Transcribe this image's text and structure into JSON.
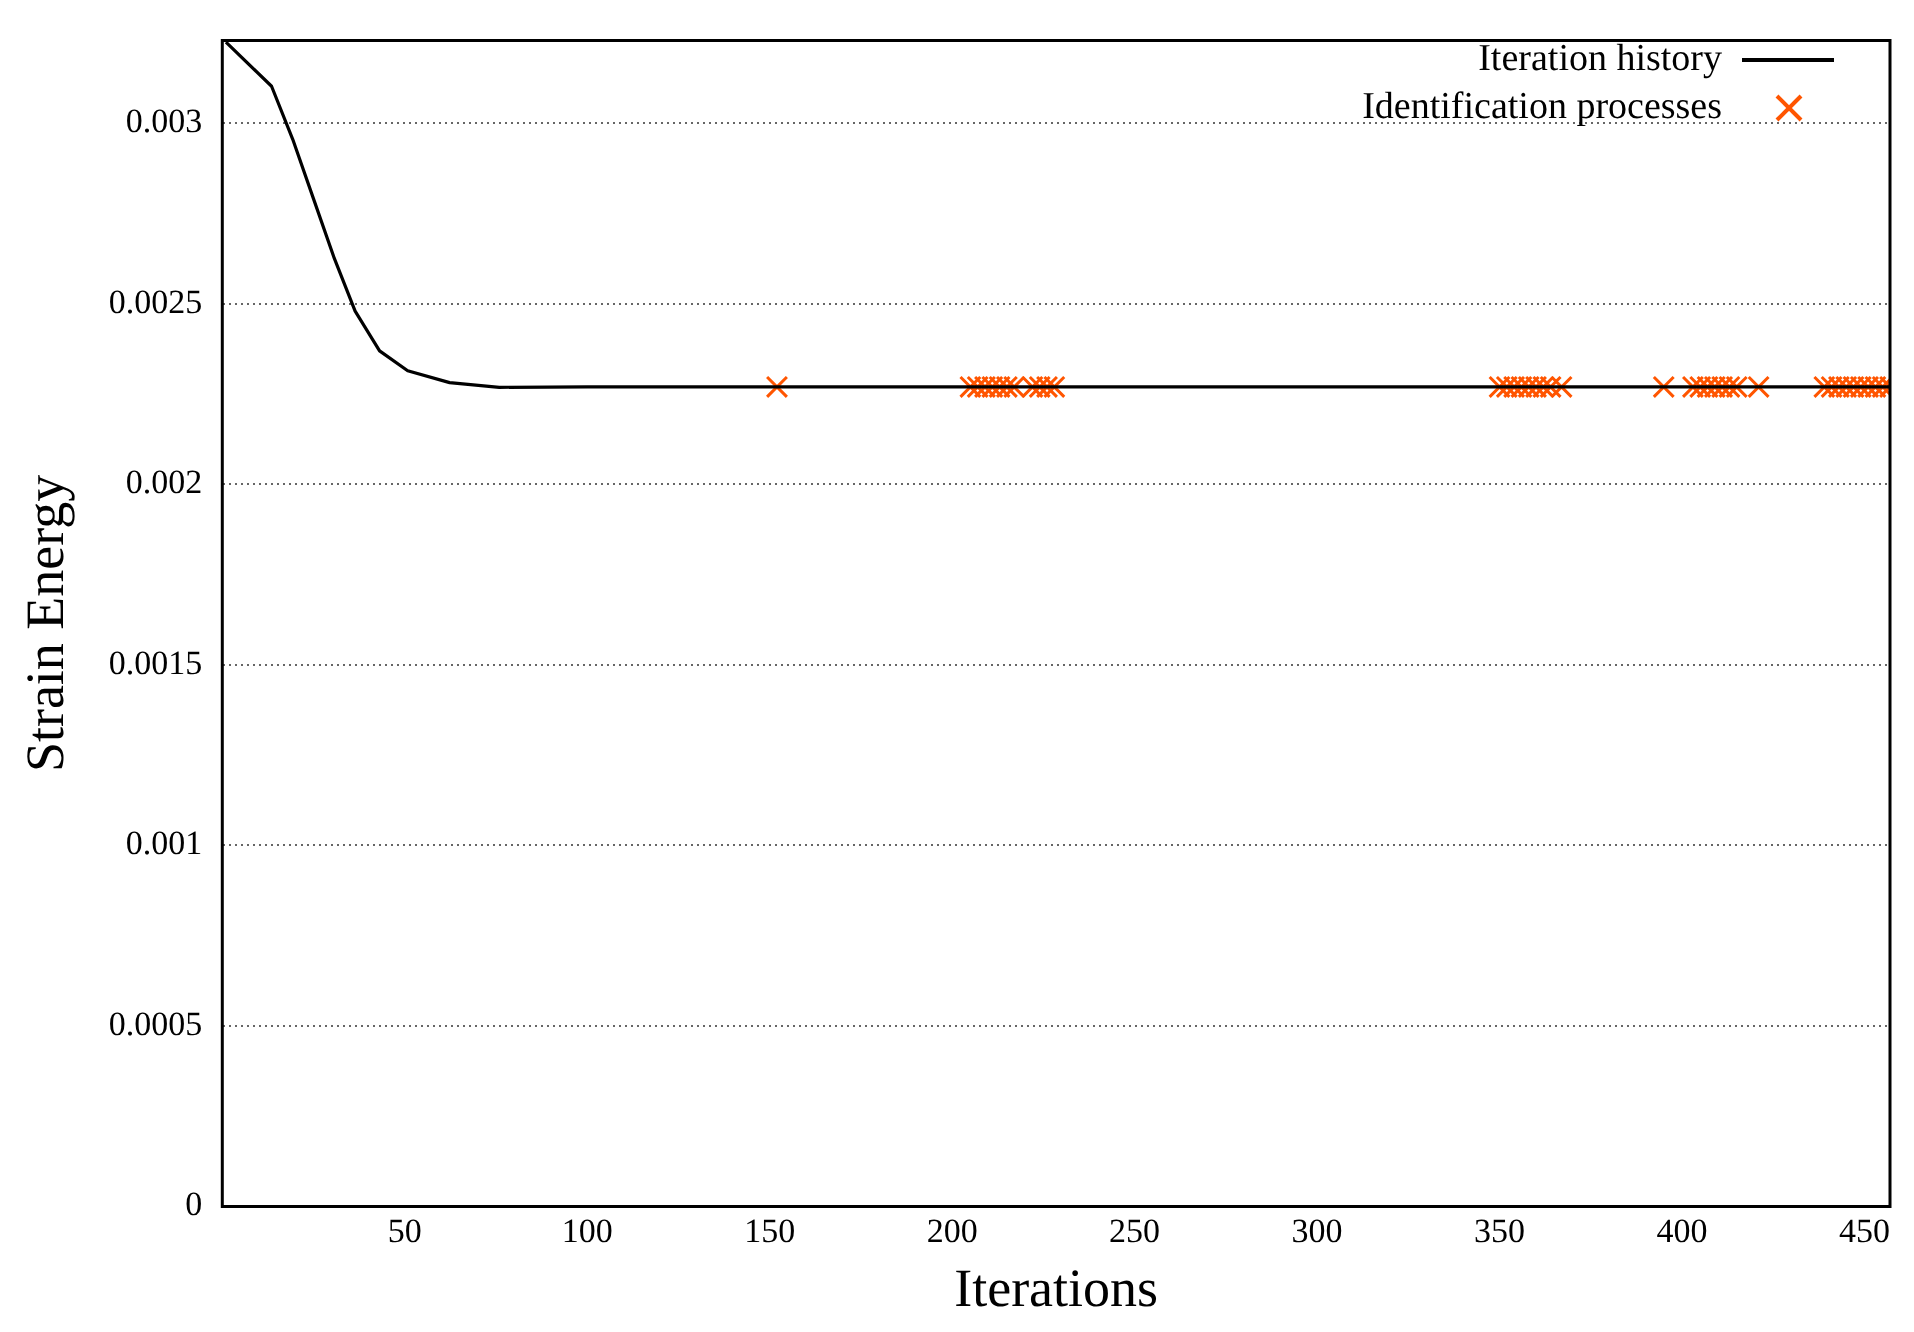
{
  "chart_data": {
    "type": "line",
    "xlabel": "Iterations",
    "ylabel": "Strain Energy",
    "xlim": [
      0,
      457
    ],
    "ylim": [
      0,
      0.00323
    ],
    "xticks": [
      50,
      100,
      150,
      200,
      250,
      300,
      350,
      400,
      450
    ],
    "yticks": [
      0,
      0.0005,
      0.001,
      0.0015,
      0.002,
      0.0025,
      0.003
    ],
    "grid": "y",
    "legend": "top right",
    "series": [
      {
        "name": "Iteration history",
        "color": "#000000",
        "marker": "none",
        "line_style": "solid",
        "x": [
          1,
          13.5,
          19.3,
          25,
          30.7,
          36.4,
          43.1,
          50.8,
          62.3,
          75.9,
          100,
          200,
          300,
          400,
          457
        ],
        "values": [
          0.003225,
          0.003103,
          0.002956,
          0.002791,
          0.002626,
          0.00248,
          0.00237,
          0.002315,
          0.002282,
          0.002269,
          0.00227,
          0.00227,
          0.00227,
          0.00227,
          0.00227
        ]
      },
      {
        "name": "Identification processes",
        "type": "scatter",
        "color": "#ff5500",
        "marker": "cross",
        "x": [
          152,
          205,
          207,
          209,
          211,
          213,
          215,
          217,
          222,
          224,
          226,
          228,
          350,
          352,
          354,
          356,
          358,
          360,
          362,
          364,
          367,
          395,
          403,
          405,
          407,
          409,
          411,
          413,
          415,
          421,
          439,
          441,
          443,
          445,
          447,
          449,
          451,
          453,
          455,
          457
        ],
        "values": [
          0.00227,
          0.00227,
          0.00227,
          0.00227,
          0.00227,
          0.00227,
          0.00227,
          0.00227,
          0.00227,
          0.00227,
          0.00227,
          0.00227,
          0.00227,
          0.00227,
          0.00227,
          0.00227,
          0.00227,
          0.00227,
          0.00227,
          0.00227,
          0.00227,
          0.00227,
          0.00227,
          0.00227,
          0.00227,
          0.00227,
          0.00227,
          0.00227,
          0.00227,
          0.00227,
          0.00227,
          0.00227,
          0.00227,
          0.00227,
          0.00227,
          0.00227,
          0.00227,
          0.00227,
          0.00227,
          0.00227
        ]
      }
    ]
  }
}
